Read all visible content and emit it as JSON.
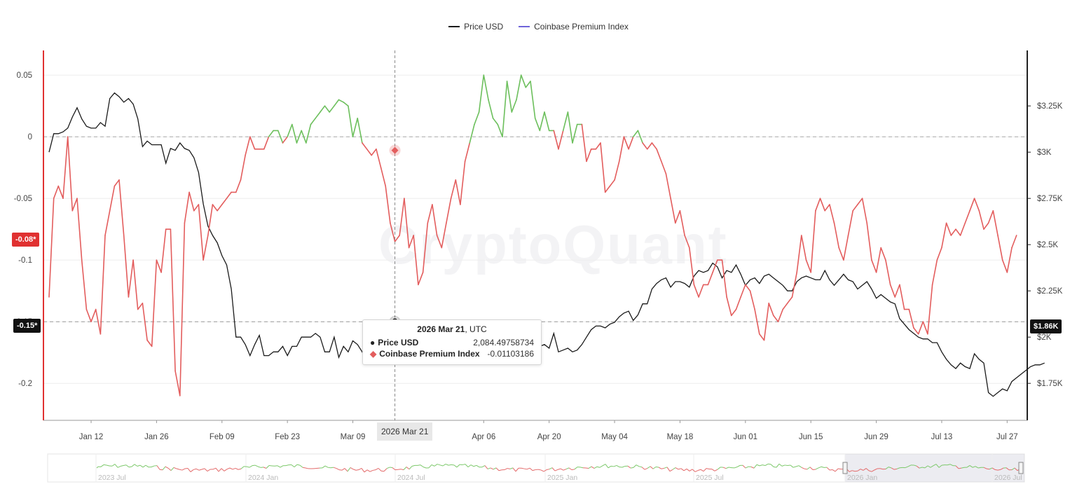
{
  "legend": {
    "price_label": "Price USD",
    "premium_label": "Coinbase Premium Index"
  },
  "colors": {
    "price": "#1a1a1a",
    "premium_negative": "#e35d5d",
    "premium_positive": "#6cbf5c",
    "premium_legend": "#6f63d9",
    "left_axis_accent": "#e03131",
    "badge_dark": "#111111"
  },
  "watermark": "CryptoQuant",
  "badges": {
    "premium_current": "-0.08*",
    "premium_level": "-0.15*",
    "price_current": "$1.86K"
  },
  "tooltip": {
    "date": "2026 Mar 21",
    "tz": ", UTC",
    "price_label": "Price USD",
    "price_value": "2,084.49758734",
    "premium_label": "Coinbase Premium Index",
    "premium_value": "-0.01103186"
  },
  "x_hover_label": "2026 Mar 21",
  "navigator_labels": [
    "2023 Jul",
    "2024 Jan",
    "2024 Jul",
    "2025 Jan",
    "2025 Jul",
    "2026 Jan",
    "2026 Jul"
  ],
  "chart_data": {
    "type": "line",
    "grid": true,
    "x_ticks": [
      "Jan 12",
      "Jan 26",
      "Feb 09",
      "Feb 23",
      "Mar 09",
      "Apr 06",
      "Apr 20",
      "May 04",
      "May 18",
      "Jun 01",
      "Jun 15",
      "Jun 29",
      "Jul 13",
      "Jul 27"
    ],
    "left_axis": {
      "ticks": [
        "0.05",
        "0",
        "-0.05",
        "-0.1",
        "-0.15",
        "-0.2"
      ],
      "ylim": [
        -0.23,
        0.07
      ]
    },
    "right_axis": {
      "ticks": [
        "$3.25K",
        "$3K",
        "$2.75K",
        "$2.5K",
        "$2.25K",
        "$2K",
        "$1.75K"
      ],
      "ylim": [
        1550,
        3550
      ]
    },
    "x_range": [
      0,
      209
    ],
    "series": [
      {
        "name": "Price USD",
        "axis": "right",
        "values": [
          3000,
          3100,
          3100,
          3110,
          3130,
          3190,
          3240,
          3180,
          3140,
          3130,
          3130,
          3160,
          3140,
          3290,
          3320,
          3300,
          3270,
          3290,
          3260,
          3180,
          3030,
          3060,
          3040,
          3040,
          3040,
          2940,
          3020,
          3010,
          3050,
          3020,
          3010,
          2970,
          2890,
          2720,
          2600,
          2550,
          2510,
          2440,
          2390,
          2260,
          2000,
          2000,
          1960,
          1900,
          1960,
          2010,
          1900,
          1900,
          1920,
          1920,
          1950,
          1900,
          1950,
          1950,
          2000,
          2000,
          2000,
          2020,
          2000,
          1920,
          1920,
          2000,
          1890,
          1950,
          1920,
          1980,
          1960,
          1920,
          1860,
          1860,
          1930,
          1940,
          1940,
          1950,
          1940,
          1930,
          1920,
          1890,
          1950,
          1960,
          1920,
          1920,
          2020,
          1980,
          1940,
          1920,
          1960,
          1990,
          2000,
          1990,
          1970,
          1940,
          1920,
          1890,
          1940,
          1960,
          1930,
          1930,
          1960,
          2080,
          2050,
          2020,
          2070,
          2060,
          1890,
          1950,
          1960,
          1940,
          2020,
          1920,
          1930,
          1940,
          1920,
          1930,
          1960,
          2000,
          2040,
          2060,
          2060,
          2050,
          2070,
          2080,
          2110,
          2130,
          2140,
          2090,
          2120,
          2180,
          2180,
          2260,
          2290,
          2310,
          2320,
          2270,
          2300,
          2300,
          2290,
          2270,
          2330,
          2360,
          2350,
          2360,
          2400,
          2380,
          2320,
          2360,
          2350,
          2390,
          2340,
          2280,
          2310,
          2320,
          2290,
          2330,
          2340,
          2320,
          2300,
          2280,
          2250,
          2250,
          2300,
          2320,
          2330,
          2320,
          2310,
          2310,
          2360,
          2310,
          2280,
          2310,
          2340,
          2310,
          2300,
          2260,
          2280,
          2300,
          2260,
          2210,
          2230,
          2210,
          2190,
          2180,
          2100,
          2070,
          2040,
          2020,
          2000,
          1990,
          1990,
          1970,
          1970,
          1920,
          1880,
          1850,
          1830,
          1860,
          1840,
          1830,
          1910,
          1880,
          1860,
          1700,
          1680,
          1700,
          1720,
          1710,
          1760,
          1780,
          1800,
          1820,
          1840,
          1850,
          1850,
          1860
        ],
        "current": 1860,
        "hover_value": 2084.49758734
      },
      {
        "name": "Coinbase Premium Index",
        "axis": "left",
        "values": [
          -0.13,
          -0.05,
          -0.04,
          -0.05,
          0,
          -0.06,
          -0.05,
          -0.1,
          -0.14,
          -0.15,
          -0.14,
          -0.16,
          -0.08,
          -0.06,
          -0.04,
          -0.035,
          -0.08,
          -0.13,
          -0.1,
          -0.14,
          -0.135,
          -0.165,
          -0.17,
          -0.1,
          -0.11,
          -0.075,
          -0.075,
          -0.19,
          -0.21,
          -0.07,
          -0.045,
          -0.06,
          -0.055,
          -0.1,
          -0.08,
          -0.055,
          -0.06,
          -0.055,
          -0.05,
          -0.045,
          -0.045,
          -0.035,
          -0.015,
          0,
          -0.01,
          -0.01,
          -0.01,
          0,
          0.005,
          0.005,
          -0.005,
          0,
          0.01,
          -0.005,
          0.005,
          -0.005,
          0.01,
          0.015,
          0.02,
          0.025,
          0.02,
          0.025,
          0.03,
          0.028,
          0.025,
          0,
          0.015,
          -0.005,
          -0.01,
          -0.015,
          -0.01,
          -0.025,
          -0.04,
          -0.07,
          -0.085,
          -0.08,
          -0.05,
          -0.09,
          -0.08,
          -0.12,
          -0.11,
          -0.07,
          -0.055,
          -0.08,
          -0.09,
          -0.07,
          -0.05,
          -0.035,
          -0.055,
          -0.02,
          -0.005,
          0.01,
          0.02,
          0.05,
          0.03,
          0.015,
          0.01,
          0,
          0.045,
          0.02,
          0.03,
          0.05,
          0.04,
          0.045,
          0.015,
          0.005,
          0.02,
          0.005,
          0.005,
          -0.01,
          0.005,
          0.02,
          -0.005,
          0.01,
          0.01,
          -0.02,
          -0.01,
          -0.01,
          -0.005,
          -0.045,
          -0.04,
          -0.035,
          -0.02,
          0,
          -0.01,
          0,
          0.005,
          -0.005,
          -0.01,
          -0.005,
          -0.01,
          -0.02,
          -0.03,
          -0.05,
          -0.07,
          -0.06,
          -0.08,
          -0.09,
          -0.12,
          -0.13,
          -0.12,
          -0.12,
          -0.11,
          -0.1,
          -0.1,
          -0.13,
          -0.145,
          -0.14,
          -0.13,
          -0.12,
          -0.125,
          -0.14,
          -0.16,
          -0.165,
          -0.135,
          -0.145,
          -0.15,
          -0.14,
          -0.135,
          -0.13,
          -0.11,
          -0.08,
          -0.1,
          -0.11,
          -0.06,
          -0.05,
          -0.06,
          -0.055,
          -0.07,
          -0.09,
          -0.1,
          -0.08,
          -0.06,
          -0.055,
          -0.05,
          -0.07,
          -0.1,
          -0.11,
          -0.09,
          -0.1,
          -0.12,
          -0.13,
          -0.12,
          -0.14,
          -0.14,
          -0.155,
          -0.16,
          -0.15,
          -0.16,
          -0.12,
          -0.1,
          -0.09,
          -0.07,
          -0.08,
          -0.075,
          -0.08,
          -0.07,
          -0.06,
          -0.05,
          -0.06,
          -0.075,
          -0.07,
          -0.06,
          -0.08,
          -0.1,
          -0.11,
          -0.09,
          -0.08
        ],
        "current": -0.08,
        "hover_value": -0.01103186
      }
    ],
    "hover_index": 74
  }
}
